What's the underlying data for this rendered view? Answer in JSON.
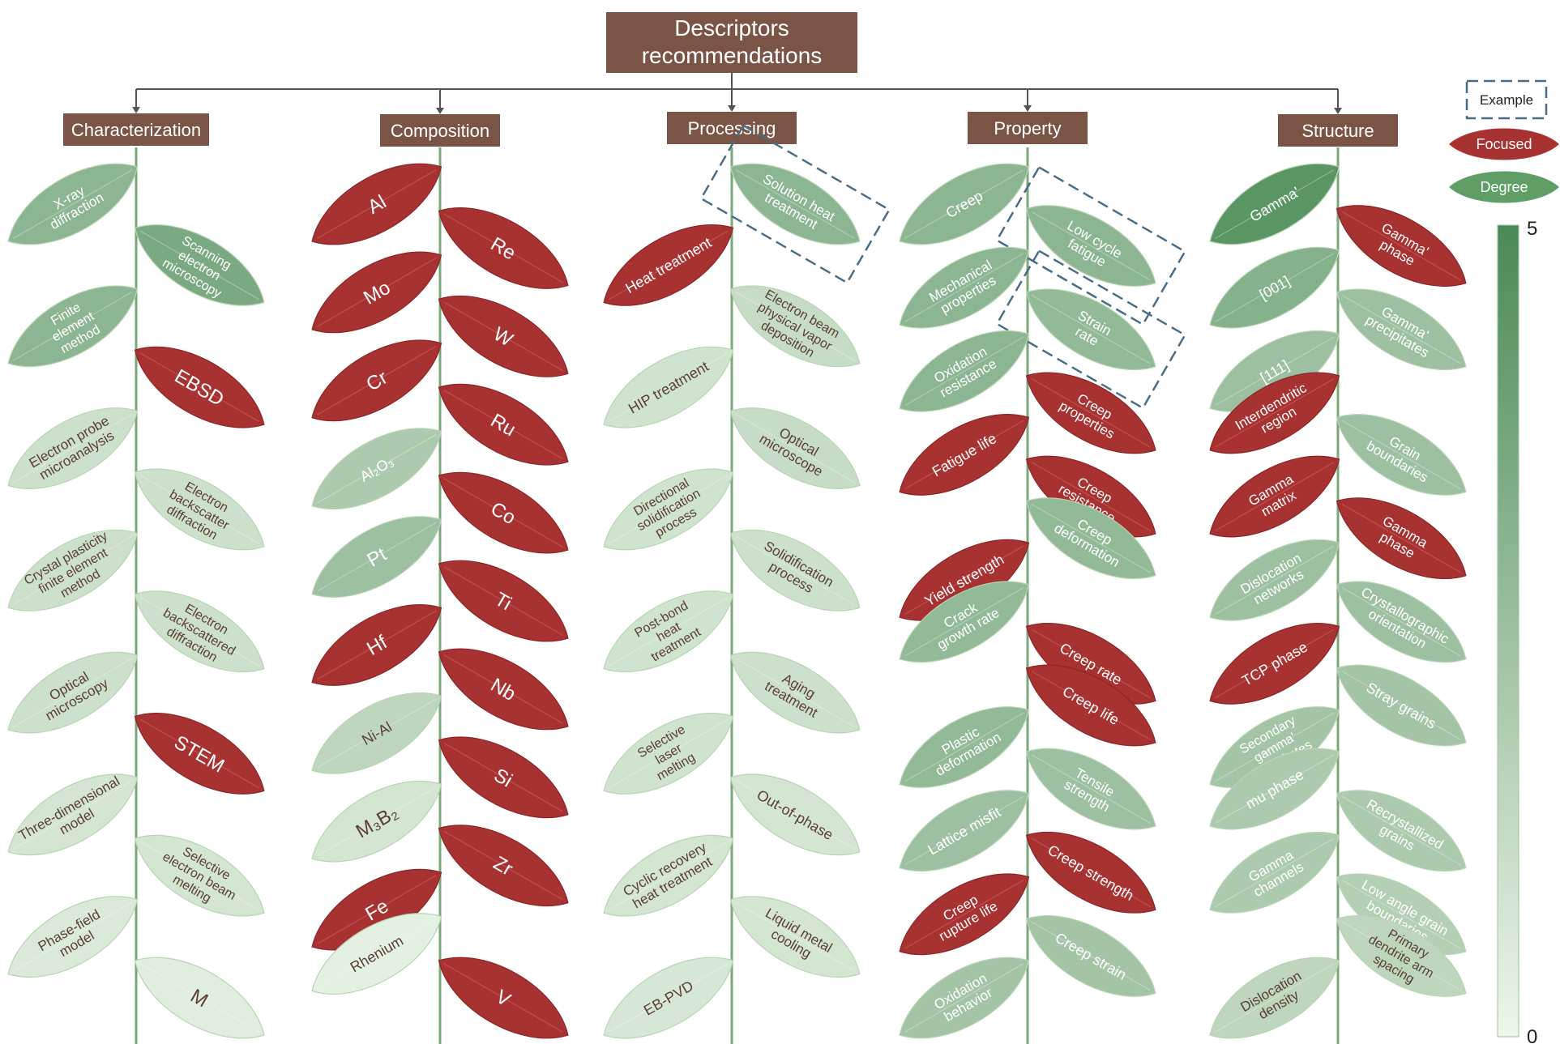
{
  "root": {
    "lines": [
      "Descriptors",
      "recommendations"
    ]
  },
  "legend": {
    "example_label": "Example",
    "focused_label": "Focused",
    "degree_label": "Degree",
    "scale_max": "5",
    "scale_min": "0"
  },
  "colors": {
    "box": "#7a5545",
    "focused": "#a83232",
    "stem": "#7aa87a",
    "degree_low": "#eef6ea",
    "degree_high": "#4a8a55",
    "dash": "#4a6d86"
  },
  "branches": [
    {
      "label": "Characterization",
      "leaves": [
        {
          "lines": [
            "X-ray",
            "diffraction"
          ],
          "side": "left",
          "degree": 3.0
        },
        {
          "lines": [
            "Scanning",
            "electron",
            "microscopy"
          ],
          "side": "right",
          "degree": 3.5
        },
        {
          "lines": [
            "Finite",
            "element",
            "method"
          ],
          "side": "left",
          "degree": 3.0
        },
        {
          "lines": [
            "EBSD"
          ],
          "side": "right",
          "focused": true
        },
        {
          "lines": [
            "Electron probe",
            "microanalysis"
          ],
          "side": "left",
          "degree": 1.0
        },
        {
          "lines": [
            "Electron",
            "backscatter",
            "diffraction"
          ],
          "side": "right",
          "degree": 1.0
        },
        {
          "lines": [
            "Crystal plasticity",
            "finite element",
            "method"
          ],
          "side": "left",
          "degree": 1.0
        },
        {
          "lines": [
            "Electron",
            "backscattered",
            "diffraction"
          ],
          "side": "right",
          "degree": 1.0
        },
        {
          "lines": [
            "Optical",
            "microscopy"
          ],
          "side": "left",
          "degree": 1.0
        },
        {
          "lines": [
            "STEM"
          ],
          "side": "right",
          "focused": true
        },
        {
          "lines": [
            "Three-dimensional",
            "model"
          ],
          "side": "left",
          "degree": 0.8
        },
        {
          "lines": [
            "Selective",
            "electron beam",
            "melting"
          ],
          "side": "right",
          "degree": 0.8
        },
        {
          "lines": [
            "Phase-field",
            "model"
          ],
          "side": "left",
          "degree": 0.6
        },
        {
          "lines": [
            "M"
          ],
          "side": "right",
          "degree": 0.4
        }
      ]
    },
    {
      "label": "Composition",
      "leaves": [
        {
          "lines": [
            "Al"
          ],
          "side": "left",
          "focused": true
        },
        {
          "lines": [
            "Re"
          ],
          "side": "right",
          "focused": true
        },
        {
          "lines": [
            "Mo"
          ],
          "side": "left",
          "focused": true
        },
        {
          "lines": [
            "W"
          ],
          "side": "right",
          "focused": true
        },
        {
          "lines": [
            "Cr"
          ],
          "side": "left",
          "focused": true
        },
        {
          "lines": [
            "Ru"
          ],
          "side": "right",
          "focused": true
        },
        {
          "lines": [
            "Al₂O₃"
          ],
          "side": "left",
          "degree": 2.0
        },
        {
          "lines": [
            "Co"
          ],
          "side": "right",
          "focused": true
        },
        {
          "lines": [
            "Pt"
          ],
          "side": "left",
          "degree": 2.5
        },
        {
          "lines": [
            "Ti"
          ],
          "side": "right",
          "focused": true
        },
        {
          "lines": [
            "Hf"
          ],
          "side": "left",
          "focused": true
        },
        {
          "lines": [
            "Nb"
          ],
          "side": "right",
          "focused": true
        },
        {
          "lines": [
            "Ni-Al"
          ],
          "side": "left",
          "degree": 1.5
        },
        {
          "lines": [
            "Si"
          ],
          "side": "right",
          "focused": true
        },
        {
          "lines": [
            "M₃B₂"
          ],
          "side": "left",
          "degree": 0.8
        },
        {
          "lines": [
            "Zr"
          ],
          "side": "right",
          "focused": true
        },
        {
          "lines": [
            "Fe"
          ],
          "side": "left",
          "focused": true
        },
        {
          "lines": [
            "Rhenium"
          ],
          "side": "left",
          "degree": 0.3
        },
        {
          "lines": [
            "V"
          ],
          "side": "right",
          "focused": true
        }
      ]
    },
    {
      "label": "Processing",
      "leaves": [
        {
          "lines": [
            "Solution heat",
            "treatment"
          ],
          "side": "right",
          "degree": 3.0,
          "example": true
        },
        {
          "lines": [
            "Heat treatment"
          ],
          "side": "left",
          "focused": true
        },
        {
          "lines": [
            "Electron beam",
            "physical vapor",
            "deposition"
          ],
          "side": "right",
          "degree": 1.2
        },
        {
          "lines": [
            "HIP treatment"
          ],
          "side": "left",
          "degree": 0.9
        },
        {
          "lines": [
            "Optical",
            "microscope"
          ],
          "side": "right",
          "degree": 1.2
        },
        {
          "lines": [
            "Directional",
            "solidification",
            "process"
          ],
          "side": "left",
          "degree": 0.9
        },
        {
          "lines": [
            "Solidification",
            "process"
          ],
          "side": "right",
          "degree": 1.0
        },
        {
          "lines": [
            "Post-bond",
            "heat",
            "treatment"
          ],
          "side": "left",
          "degree": 0.9
        },
        {
          "lines": [
            "Aging",
            "treatment"
          ],
          "side": "right",
          "degree": 1.0
        },
        {
          "lines": [
            "Selective",
            "laser",
            "melting"
          ],
          "side": "left",
          "degree": 0.9
        },
        {
          "lines": [
            "Out-of-phase"
          ],
          "side": "right",
          "degree": 0.8
        },
        {
          "lines": [
            "Cyclic recovery",
            "heat treatment"
          ],
          "side": "left",
          "degree": 0.8
        },
        {
          "lines": [
            "Liquid metal",
            "cooling"
          ],
          "side": "right",
          "degree": 0.8
        },
        {
          "lines": [
            "EB-PVD"
          ],
          "side": "left",
          "degree": 0.7
        }
      ]
    },
    {
      "label": "Property",
      "leaves": [
        {
          "lines": [
            "Creep"
          ],
          "side": "left",
          "degree": 3.0
        },
        {
          "lines": [
            "Low cycle",
            "fatigue"
          ],
          "side": "right",
          "degree": 3.0,
          "example": true
        },
        {
          "lines": [
            "Mechanical",
            "properties"
          ],
          "side": "left",
          "degree": 3.0
        },
        {
          "lines": [
            "Strain",
            "rate"
          ],
          "side": "right",
          "degree": 2.8,
          "example": true
        },
        {
          "lines": [
            "Oxidation",
            "resistance"
          ],
          "side": "left",
          "degree": 3.0
        },
        {
          "lines": [
            "Creep",
            "properties"
          ],
          "side": "right",
          "focused": true
        },
        {
          "lines": [
            "Fatigue life"
          ],
          "side": "left",
          "focused": true
        },
        {
          "lines": [
            "Creep",
            "resistance"
          ],
          "side": "right",
          "focused": true
        },
        {
          "lines": [
            "Creep",
            "deformation"
          ],
          "side": "right",
          "degree": 2.8
        },
        {
          "lines": [
            "Yield strength"
          ],
          "side": "left",
          "focused": true
        },
        {
          "lines": [
            "Crack",
            "growth rate"
          ],
          "side": "left",
          "degree": 2.8
        },
        {
          "lines": [
            "Creep rate"
          ],
          "side": "right",
          "focused": true
        },
        {
          "lines": [
            "Creep life"
          ],
          "side": "right",
          "focused": true
        },
        {
          "lines": [
            "Plastic",
            "deformation"
          ],
          "side": "left",
          "degree": 2.8
        },
        {
          "lines": [
            "Tensile",
            "strength"
          ],
          "side": "right",
          "degree": 2.5
        },
        {
          "lines": [
            "Lattice misfit"
          ],
          "side": "left",
          "degree": 2.5
        },
        {
          "lines": [
            "Creep strength"
          ],
          "side": "right",
          "focused": true
        },
        {
          "lines": [
            "Creep",
            "rupture life"
          ],
          "side": "left",
          "focused": true
        },
        {
          "lines": [
            "Creep strain"
          ],
          "side": "right",
          "degree": 2.3
        },
        {
          "lines": [
            "Oxidation",
            "behavior"
          ],
          "side": "left",
          "degree": 2.3
        }
      ]
    },
    {
      "label": "Structure",
      "leaves": [
        {
          "lines": [
            "Gamma'"
          ],
          "side": "left",
          "degree": 4.5
        },
        {
          "lines": [
            "Gamma'",
            "phase"
          ],
          "side": "right",
          "focused": true
        },
        {
          "lines": [
            "[001]"
          ],
          "side": "left",
          "degree": 3.2
        },
        {
          "lines": [
            "Gamma'",
            "precipitates"
          ],
          "side": "right",
          "degree": 2.5
        },
        {
          "lines": [
            "[111]"
          ],
          "side": "left",
          "degree": 2.5
        },
        {
          "lines": [
            "Interdendritic",
            "region"
          ],
          "side": "left",
          "focused": true
        },
        {
          "lines": [
            "Grain",
            "boundaries"
          ],
          "side": "right",
          "degree": 2.5
        },
        {
          "lines": [
            "Gamma",
            "matrix"
          ],
          "side": "left",
          "focused": true
        },
        {
          "lines": [
            "Gamma",
            "phase"
          ],
          "side": "right",
          "focused": true
        },
        {
          "lines": [
            "Dislocation",
            "networks"
          ],
          "side": "left",
          "degree": 2.5
        },
        {
          "lines": [
            "Crystallographic",
            "orientation"
          ],
          "side": "right",
          "degree": 2.5
        },
        {
          "lines": [
            "TCP phase"
          ],
          "side": "left",
          "focused": true
        },
        {
          "lines": [
            "Stray grains"
          ],
          "side": "right",
          "degree": 2.3
        },
        {
          "lines": [
            "Secondary",
            "gamma'",
            "precipitates"
          ],
          "side": "left",
          "degree": 2.3
        },
        {
          "lines": [
            "mu phase"
          ],
          "side": "left",
          "degree": 2.0
        },
        {
          "lines": [
            "Recrystallized",
            "grains"
          ],
          "side": "right",
          "degree": 2.0
        },
        {
          "lines": [
            "Gamma",
            "channels"
          ],
          "side": "left",
          "degree": 2.0
        },
        {
          "lines": [
            "Low angle grain",
            "boundaries"
          ],
          "side": "right",
          "degree": 1.8
        },
        {
          "lines": [
            "Primary",
            "dendrite arm",
            "spacing"
          ],
          "side": "right",
          "degree": 1.5
        },
        {
          "lines": [
            "Dislocation",
            "density"
          ],
          "side": "left",
          "degree": 1.5
        }
      ]
    }
  ]
}
